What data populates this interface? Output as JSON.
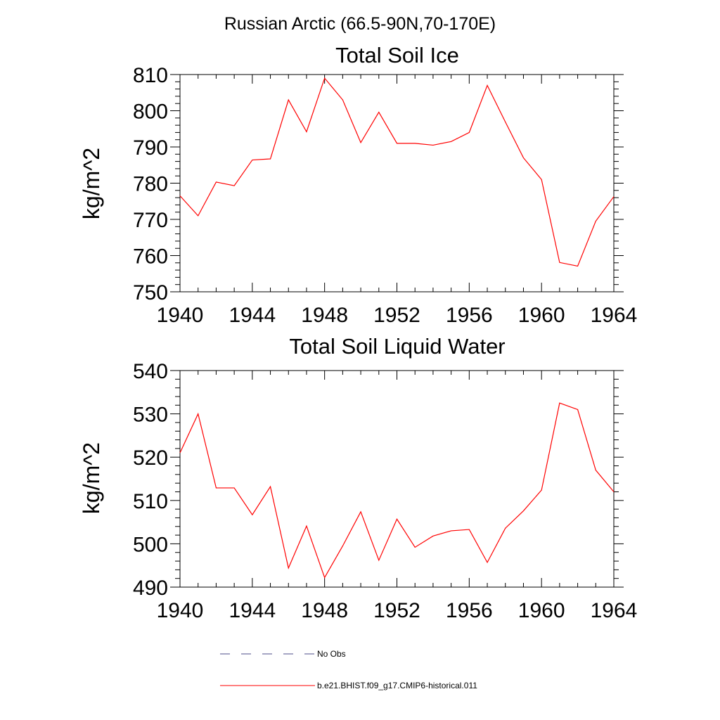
{
  "figure": {
    "suptitle": "Russian Arctic (66.5-90N,70-170E)"
  },
  "chart_data": [
    {
      "type": "line",
      "title": "Total Soil Ice",
      "xlabel": "",
      "ylabel": "kg/m^2",
      "xlim": [
        1940,
        1964
      ],
      "ylim": [
        750,
        810
      ],
      "xticks": [
        1940,
        1944,
        1948,
        1952,
        1956,
        1960,
        1964
      ],
      "yticks": [
        750,
        760,
        770,
        780,
        790,
        800,
        810
      ],
      "grid": false,
      "x": [
        1940,
        1941,
        1942,
        1943,
        1944,
        1945,
        1946,
        1947,
        1948,
        1949,
        1950,
        1951,
        1952,
        1953,
        1954,
        1955,
        1956,
        1957,
        1958,
        1959,
        1960,
        1961,
        1962,
        1963,
        1964
      ],
      "series": [
        {
          "name": "b.e21.BHIST.f09_g17.CMIP6-historical.011",
          "color": "#ff0000",
          "values": [
            776.5,
            771.0,
            780.3,
            779.3,
            786.4,
            786.7,
            803.0,
            794.2,
            809.0,
            803.0,
            791.2,
            799.6,
            791.0,
            791.0,
            790.5,
            791.5,
            794.0,
            807.0,
            796.9,
            787.0,
            781.0,
            758.1,
            757.1,
            769.5,
            776.3
          ]
        }
      ]
    },
    {
      "type": "line",
      "title": "Total Soil Liquid Water",
      "xlabel": "",
      "ylabel": "kg/m^2",
      "xlim": [
        1940,
        1964
      ],
      "ylim": [
        490,
        540
      ],
      "xticks": [
        1940,
        1944,
        1948,
        1952,
        1956,
        1960,
        1964
      ],
      "yticks": [
        490,
        500,
        510,
        520,
        530,
        540
      ],
      "grid": false,
      "x": [
        1940,
        1941,
        1942,
        1943,
        1944,
        1945,
        1946,
        1947,
        1948,
        1949,
        1950,
        1951,
        1952,
        1953,
        1954,
        1955,
        1956,
        1957,
        1958,
        1959,
        1960,
        1961,
        1962,
        1963,
        1964
      ],
      "series": [
        {
          "name": "b.e21.BHIST.f09_g17.CMIP6-historical.011",
          "color": "#ff0000",
          "values": [
            521.0,
            530.0,
            512.9,
            512.9,
            506.7,
            513.2,
            494.4,
            504.1,
            492.2,
            499.5,
            507.4,
            496.2,
            505.7,
            499.2,
            501.8,
            503.0,
            503.3,
            495.7,
            503.6,
            507.6,
            512.4,
            532.5,
            531.0,
            517.0,
            512.0
          ]
        }
      ]
    }
  ],
  "legend": {
    "placement": "bottom",
    "entries": [
      {
        "label": "No Obs",
        "color": "#4d4d8a",
        "style": "dashed"
      },
      {
        "label": "b.e21.BHIST.f09_g17.CMIP6-historical.011",
        "color": "#ff0000",
        "style": "solid"
      }
    ]
  }
}
